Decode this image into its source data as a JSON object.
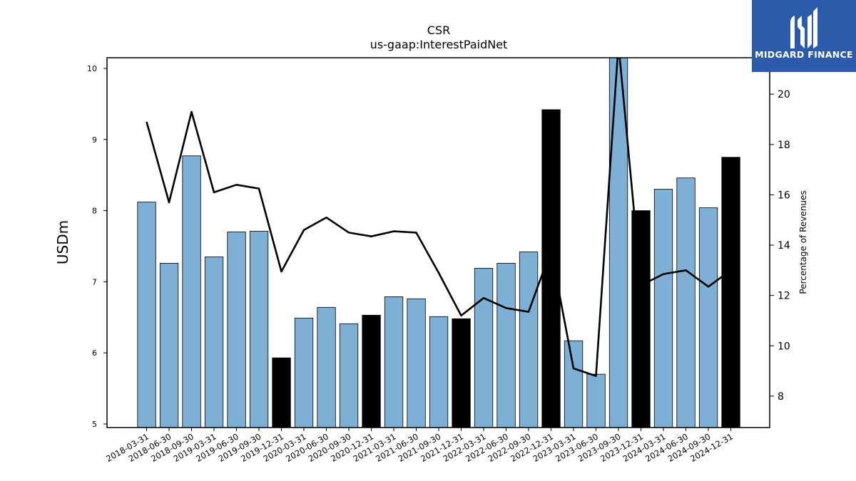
{
  "chart_data": {
    "type": "bar",
    "title": "CSR",
    "subtitle": "us-gaap:InterestPaidNet",
    "ylabel": "USDm",
    "ylabel_right": "Percentage of Revenues",
    "ylim": [
      4.95,
      10.15
    ],
    "ylim_right": [
      6.75,
      21.45
    ],
    "yticks": [
      "5",
      "6",
      "7",
      "8",
      "9",
      "10"
    ],
    "yticks_right": [
      "8",
      "10",
      "12",
      "14",
      "16",
      "18",
      "20"
    ],
    "categories": [
      "2018-03-31",
      "2018-06-30",
      "2018-09-30",
      "2019-03-31",
      "2019-06-30",
      "2019-09-30",
      "2019-12-31",
      "2020-03-31",
      "2020-06-30",
      "2020-09-30",
      "2020-12-31",
      "2021-03-31",
      "2021-06-30",
      "2021-09-30",
      "2021-12-31",
      "2022-03-31",
      "2022-06-30",
      "2022-09-30",
      "2022-12-31",
      "2023-03-31",
      "2023-06-30",
      "2023-09-30",
      "2023-12-31",
      "2024-03-31",
      "2024-06-30",
      "2024-09-30",
      "2024-12-31"
    ],
    "series": [
      {
        "type": "bar",
        "values": [
          8.12,
          7.26,
          8.77,
          7.35,
          7.7,
          7.71,
          5.93,
          6.49,
          6.64,
          6.41,
          6.53,
          6.79,
          6.76,
          6.51,
          6.48,
          7.19,
          7.26,
          7.42,
          9.42,
          6.17,
          5.7,
          10.4,
          8.0,
          8.3,
          8.46,
          8.04,
          8.75
        ],
        "highlight": [
          false,
          false,
          false,
          false,
          false,
          false,
          true,
          false,
          false,
          false,
          true,
          false,
          false,
          false,
          true,
          false,
          false,
          false,
          true,
          false,
          false,
          false,
          true,
          false,
          false,
          false,
          true
        ]
      },
      {
        "type": "line",
        "values": [
          18.9,
          15.7,
          19.3,
          16.1,
          16.4,
          16.25,
          12.95,
          14.6,
          15.1,
          14.5,
          14.35,
          14.55,
          14.5,
          12.9,
          11.2,
          11.9,
          11.5,
          11.35,
          13.8,
          9.1,
          8.8,
          22.0,
          12.4,
          12.85,
          13.0,
          12.35,
          13.0
        ]
      }
    ],
    "colors": {
      "bar": "#7eb0d5",
      "bar_highlight": "#000000",
      "line": "#000000",
      "brand": "#2c5bab"
    }
  },
  "logo": {
    "text": "MIDGARD FINANCE"
  }
}
